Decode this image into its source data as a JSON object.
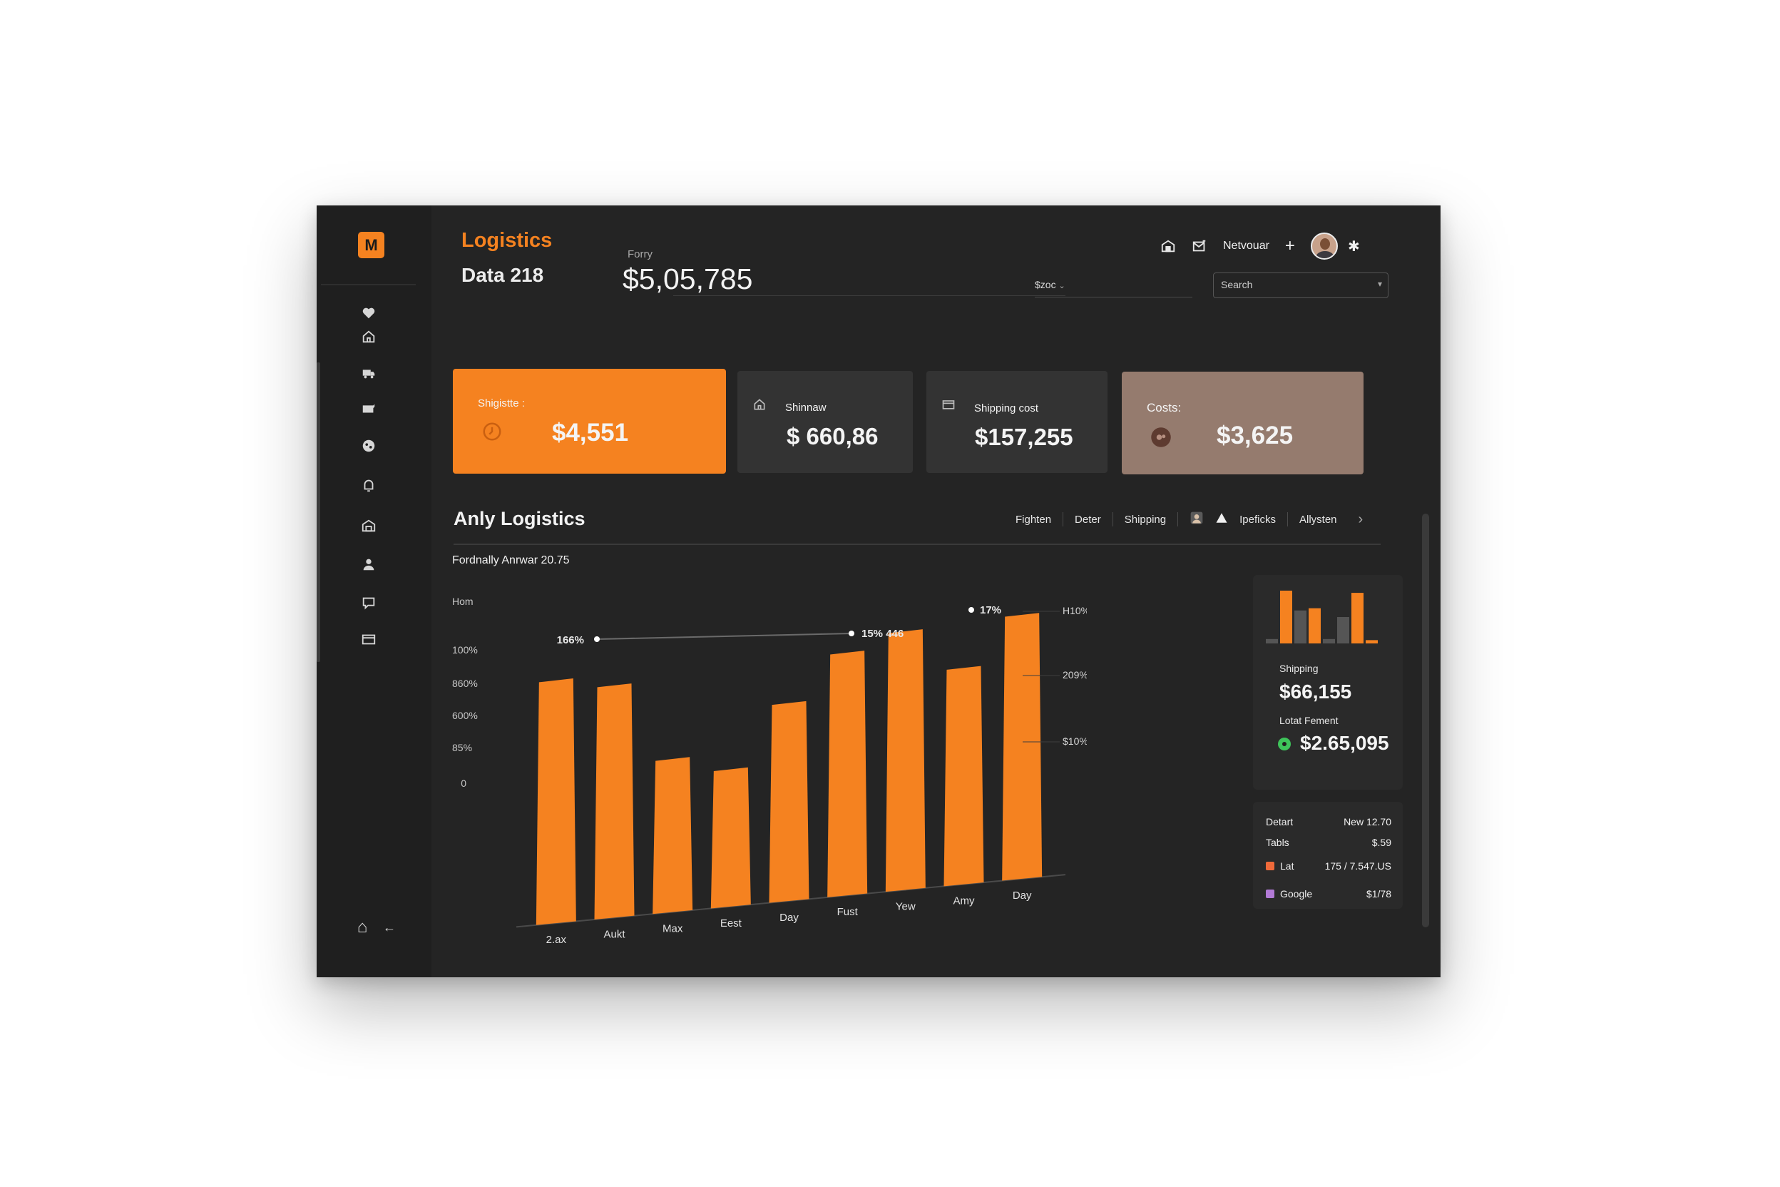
{
  "app": {
    "logo_letter": "M",
    "title": "Logistics",
    "subtitle": "Data 218"
  },
  "header_kpi": {
    "label": "Forry",
    "value": "$5,05,785"
  },
  "filter": {
    "value": "$zoc",
    "caret": "⌄"
  },
  "search": {
    "placeholder": "Search",
    "caret": "▾"
  },
  "topbar": {
    "network_label": "Netvouar",
    "add_label": "+",
    "star_label": "✱"
  },
  "nav": [
    "heart-icon",
    "home-icon",
    "truck-icon",
    "box-icon",
    "globe-icon",
    "bell-icon",
    "warehouse-icon",
    "user-icon",
    "chat-icon",
    "card-icon"
  ],
  "footer_nav": {
    "home": "⌂",
    "collapse": "←"
  },
  "cards": [
    {
      "label": "Shigistte :",
      "value": "$4,551",
      "bg": "#f58220"
    },
    {
      "label": "Shinnaw",
      "value": "$ 660,86",
      "bg": "#333333"
    },
    {
      "label": "Shipping cost",
      "value": "$157,255",
      "bg": "#333333"
    },
    {
      "label": "Costs:",
      "value": "$3,625",
      "bg": "#957b6e"
    }
  ],
  "section": {
    "title": "Anly Logistics",
    "subtitle": "Fordnally Anrwar 20.75",
    "tabs": [
      "Fighten",
      "Deter",
      "Shipping",
      "Ipeficks",
      "Allysten"
    ],
    "next_icon": "›"
  },
  "chart_data": {
    "type": "bar",
    "categories": [
      "2.ax",
      "Aukt",
      "Max",
      "Eest",
      "Day",
      "Fust",
      "Yew",
      "Amy",
      "Day"
    ],
    "values": [
      92,
      88,
      58,
      52,
      75,
      92,
      98,
      82,
      100
    ],
    "y_ticks_left": [
      "Hom",
      "100%",
      "860%",
      "600%",
      "85%",
      "0"
    ],
    "y_ticks_right": [
      "H10%",
      "209%",
      "$10%"
    ],
    "annotations": [
      {
        "label": "166%"
      },
      {
        "label": "15% 446"
      },
      {
        "label": "17%"
      }
    ],
    "colors": {
      "bar": "#f58220",
      "axis": "#4a4a4a"
    }
  },
  "side_panel": {
    "mini_bars": [
      {
        "value": 4,
        "color": "#555555"
      },
      {
        "value": 48,
        "color": "#f58220"
      },
      {
        "value": 30,
        "color": "#555555"
      },
      {
        "value": 32,
        "color": "#f58220"
      },
      {
        "value": 4,
        "color": "#555555"
      },
      {
        "value": 24,
        "color": "#555555"
      },
      {
        "value": 46,
        "color": "#f58220"
      },
      {
        "value": 3,
        "color": "#f58220"
      }
    ],
    "shipping_label": "Shipping",
    "shipping_value": "$66,155",
    "payment_label": "Lotat Fement",
    "payment_value": "$2.65,095"
  },
  "details": [
    {
      "label": "Detart",
      "value": "New 12.70",
      "swatch": ""
    },
    {
      "label": "Tabls",
      "value": "$.59",
      "swatch": ""
    },
    {
      "label": "Lat",
      "value": "175 / 7.547.US",
      "swatch": "#f06a3a"
    },
    {
      "label": "Google",
      "value": "$1/78",
      "swatch": "#b27ad6"
    }
  ]
}
